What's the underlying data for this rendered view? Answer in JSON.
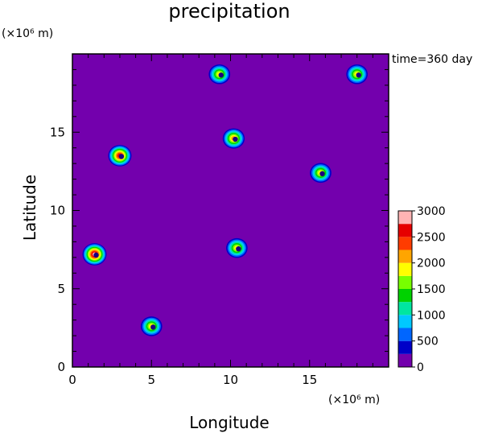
{
  "chart_data": {
    "type": "heatmap",
    "title": "precipitation",
    "xlabel": "Longitude",
    "ylabel": "Latitude",
    "x_unit": "(×10⁶ m)",
    "y_unit": "(×10⁶ m)",
    "annotation": "time=360 day",
    "xlim": [
      0,
      20
    ],
    "ylim": [
      0,
      20
    ],
    "xticks": [
      "0",
      "5",
      "10",
      "15"
    ],
    "yticks": [
      "0",
      "5",
      "10",
      "15"
    ],
    "grid": false,
    "colorbar": {
      "levels": [
        "0",
        "500",
        "1000",
        "1500",
        "2000",
        "2500",
        "3000"
      ],
      "colors": [
        "#7300ad",
        "#0000c8",
        "#0066ff",
        "#00c8ff",
        "#00e6a0",
        "#00d200",
        "#78ff00",
        "#ffff00",
        "#ffa500",
        "#ff3c00",
        "#e60000",
        "#ffb4b4"
      ]
    },
    "background_color": "#7300ad",
    "storms": [
      {
        "x": 1.4,
        "y": 7.2,
        "intensity": 3000
      },
      {
        "x": 3.0,
        "y": 13.5,
        "intensity": 2700
      },
      {
        "x": 5.0,
        "y": 2.6,
        "intensity": 2000
      },
      {
        "x": 9.3,
        "y": 18.7,
        "intensity": 2000
      },
      {
        "x": 10.2,
        "y": 14.6,
        "intensity": 2200
      },
      {
        "x": 10.4,
        "y": 7.6,
        "intensity": 2000
      },
      {
        "x": 15.7,
        "y": 12.4,
        "intensity": 2000
      },
      {
        "x": 18.0,
        "y": 18.7,
        "intensity": 2000
      }
    ]
  }
}
